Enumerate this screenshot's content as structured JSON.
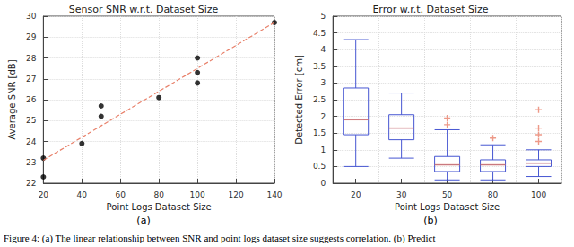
{
  "caption": "Figure 4: (a) The linear relationship between SNR and point logs dataset size suggests correlation. (b) Predict",
  "chart_data": [
    {
      "type": "scatter",
      "title": "Sensor SNR w.r.t. Dataset Size",
      "annotation": "(a)",
      "xlabel": "Point Logs Dataset Size",
      "ylabel": "Average SNR [dB]",
      "xlim": [
        20,
        140
      ],
      "xticks": [
        20,
        40,
        60,
        80,
        100,
        120,
        140
      ],
      "ylim": [
        22,
        30
      ],
      "yticks": [
        22,
        23,
        24,
        25,
        26,
        27,
        28,
        29,
        30
      ],
      "grid": true,
      "series": [
        {
          "type": "scatter",
          "color": "#000000",
          "marker": "circle",
          "x": [
            20,
            20,
            40,
            50,
            50,
            80,
            100,
            100,
            100,
            140
          ],
          "values": [
            22.3,
            23.2,
            23.9,
            25.2,
            25.7,
            26.1,
            26.8,
            27.3,
            28.0,
            29.7
          ]
        },
        {
          "type": "line",
          "color": "#e8806a",
          "line_style": "dashed",
          "x": [
            20,
            140
          ],
          "values": [
            23.1,
            29.7
          ]
        }
      ]
    },
    {
      "type": "boxplot",
      "title": "Error w.r.t. Dataset Size",
      "annotation": "(b)",
      "xlabel": "Point Logs Dataset Size",
      "ylabel": "Detected Error [cm]",
      "categories": [
        "20",
        "30",
        "50",
        "80",
        "100"
      ],
      "ylim": [
        0,
        5
      ],
      "yticks": [
        0,
        0.5,
        1,
        1.5,
        2,
        2.5,
        3,
        3.5,
        4,
        4.5,
        5
      ],
      "grid": true,
      "color": "#4656d2",
      "values": [
        [
          0.5,
          1.45,
          1.9,
          2.85,
          4.3
        ],
        [
          0.75,
          1.3,
          1.65,
          2.05,
          2.7
        ],
        [
          0.1,
          0.35,
          0.55,
          0.8,
          1.6
        ],
        [
          0.1,
          0.35,
          0.55,
          0.7,
          1.15
        ],
        [
          0.2,
          0.5,
          0.6,
          0.7,
          1.0
        ]
      ],
      "outliers": [
        [],
        [],
        [
          1.75,
          1.95
        ],
        [
          1.35
        ],
        [
          1.25,
          1.45,
          1.65,
          2.2
        ]
      ]
    }
  ]
}
